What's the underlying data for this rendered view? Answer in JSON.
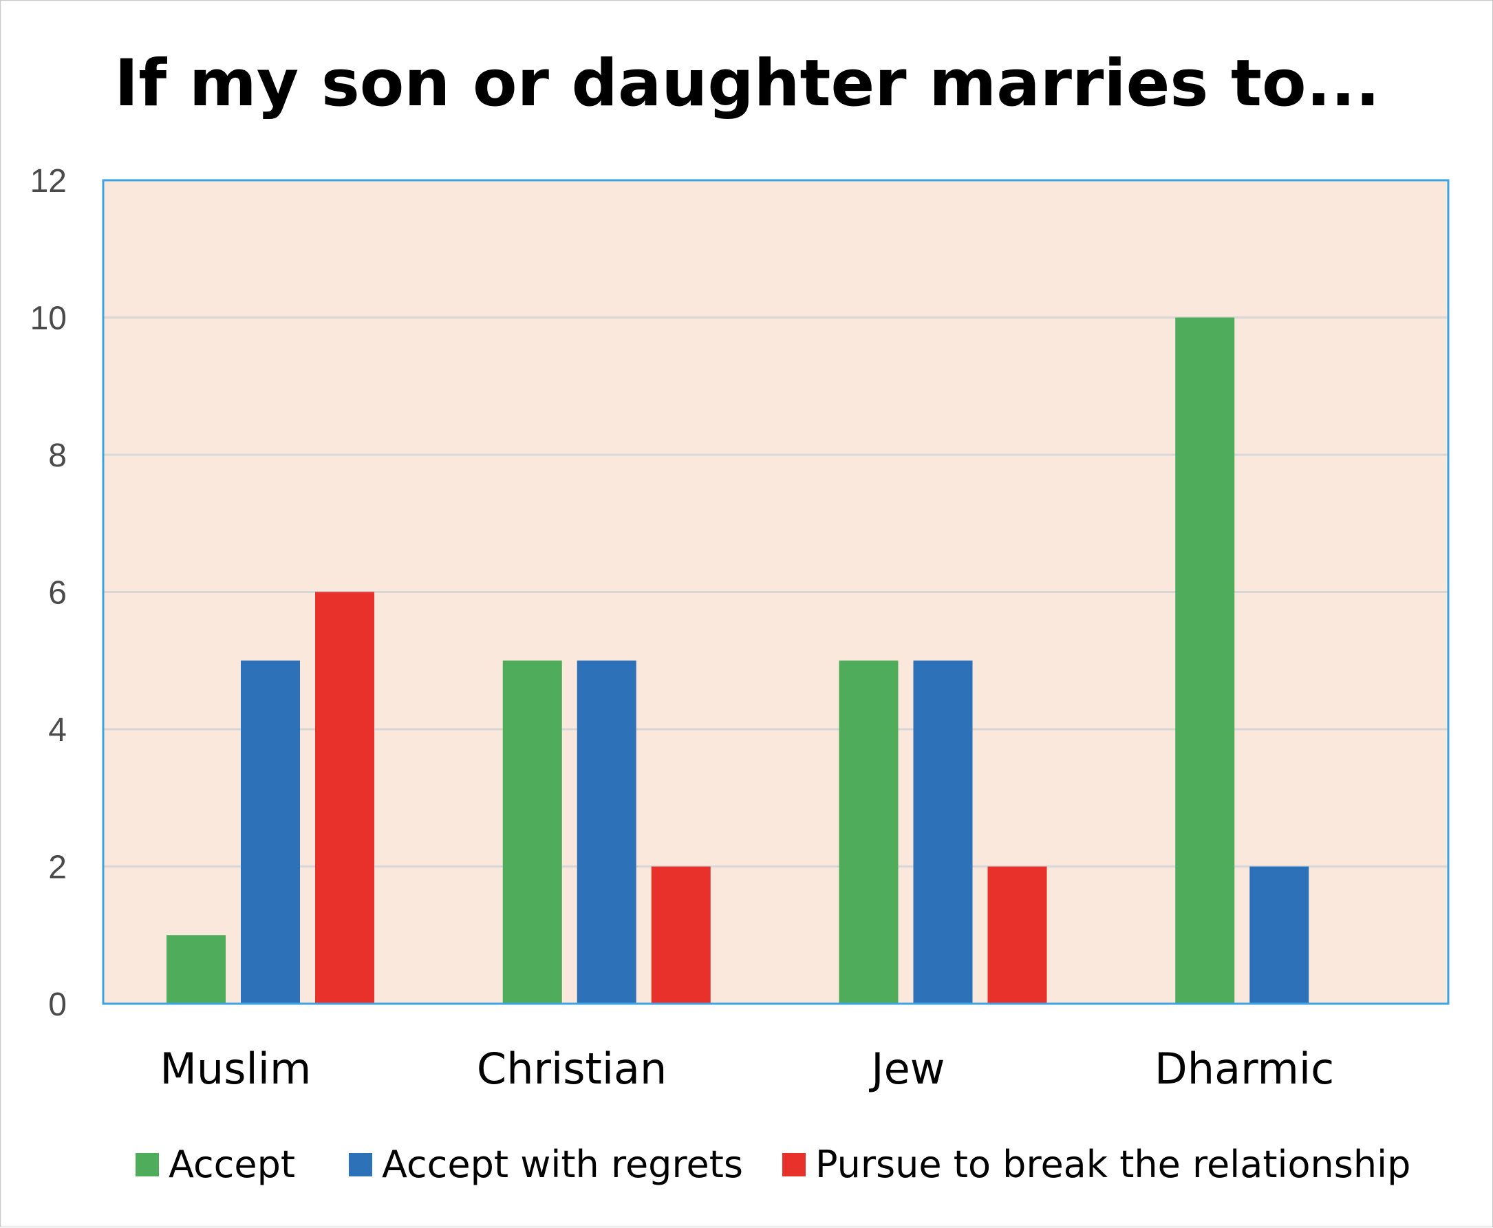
{
  "chart_data": {
    "type": "bar",
    "title": "If my son or daughter marries to...",
    "xlabel": "",
    "ylabel": "",
    "categories": [
      "Muslim",
      "Christian",
      "Jew",
      "Dharmic"
    ],
    "series": [
      {
        "name": "Accept",
        "color": "#4fac5b",
        "values": [
          1,
          5,
          5,
          10
        ]
      },
      {
        "name": "Accept with regrets",
        "color": "#2d71b9",
        "values": [
          5,
          5,
          5,
          2
        ]
      },
      {
        "name": "Pursue to break the relationship",
        "color": "#e8312a",
        "values": [
          6,
          2,
          2,
          0
        ]
      }
    ],
    "ylim": [
      0,
      12
    ],
    "yticks": [
      "0",
      "2",
      "4",
      "6",
      "8",
      "10",
      "12"
    ],
    "grid": true,
    "legend_position": "bottom",
    "plot_background": "#f9e8db",
    "plot_border_color": "#3ea3e2",
    "gridline_color": "#d6d6d6"
  }
}
